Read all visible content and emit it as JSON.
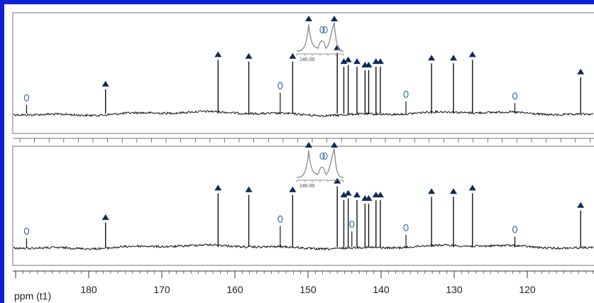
{
  "chart_data": {
    "type": "line",
    "spectrum": "13C NMR",
    "x_axis": {
      "label": "ppm (t1)",
      "ticks": [
        180,
        170,
        160,
        150,
        140,
        130,
        120
      ],
      "range": [
        190,
        111
      ],
      "reversed": true
    },
    "inset": {
      "tick_label": "146.00"
    },
    "panels": [
      {
        "name": "upper",
        "triangle_peaks_ppm": [
          177.7,
          162.3,
          158.1,
          152.1,
          146.0,
          145.1,
          144.5,
          143.3,
          142.2,
          141.7,
          140.7,
          140.1,
          133.1,
          130.1,
          127.5,
          112.7
        ],
        "circle_peaks_ppm": [
          188.5,
          153.8,
          136.6,
          121.7
        ]
      },
      {
        "name": "lower",
        "triangle_peaks_ppm": [
          177.7,
          162.3,
          158.1,
          152.1,
          146.0,
          145.1,
          144.5,
          143.3,
          142.2,
          141.7,
          140.7,
          140.1,
          133.1,
          130.1,
          127.5,
          112.7
        ],
        "circle_peaks_ppm": [
          188.5,
          153.8,
          136.6,
          121.7,
          144.0
        ]
      }
    ]
  },
  "colors": {
    "frame": "#1020d8",
    "triangle": "#0d2a5c",
    "circle": "#2d6aa8",
    "spectrum": "#111111",
    "inset": "#888888"
  }
}
